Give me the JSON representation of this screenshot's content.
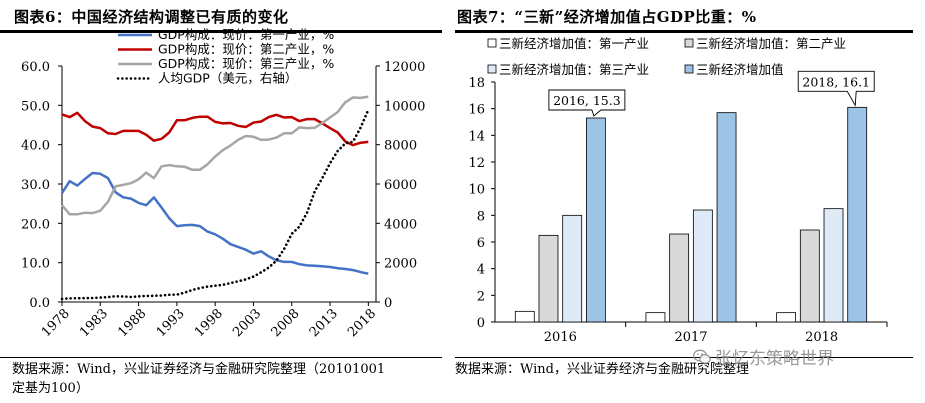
{
  "left": {
    "title": "图表6：中国经济结构调整已有质的变化",
    "source_line1": "数据来源：Wind，兴业证券经济与金融研究院整理（20101001",
    "source_line2": "定基为100）"
  },
  "right": {
    "title": "图表7：“三新”经济增加值占GDP比重：%",
    "source_line1": "数据来源：Wind，兴业证券经济与金融研究院整理"
  },
  "watermark": {
    "text": "张忆东策略世界",
    "icon": "wechat-icon"
  },
  "chart_data": [
    {
      "type": "line",
      "title": "中国经济结构调整已有质的变化",
      "x_ticks": [
        1978,
        1983,
        1988,
        1993,
        1998,
        2003,
        2008,
        2013,
        2018
      ],
      "xlim": [
        1978,
        2019
      ],
      "ylim_left": [
        0,
        60
      ],
      "y_ticks_left": [
        "0.0",
        "10.0",
        "20.0",
        "30.0",
        "40.0",
        "50.0",
        "60.0"
      ],
      "ylim_right": [
        0,
        12000
      ],
      "y_ticks_right": [
        "0",
        "2000",
        "4000",
        "6000",
        "8000",
        "10000",
        "12000"
      ],
      "grid": false,
      "legend_position": "top-right",
      "series": [
        {
          "name": "GDP构成：现价：第一产业，%",
          "axis": "left",
          "color": "#4472C4",
          "x": [
            1978,
            1979,
            1980,
            1981,
            1982,
            1983,
            1984,
            1985,
            1986,
            1987,
            1988,
            1989,
            1990,
            1991,
            1992,
            1993,
            1994,
            1995,
            1996,
            1997,
            1998,
            1999,
            2000,
            2001,
            2002,
            2003,
            2004,
            2005,
            2006,
            2007,
            2008,
            2009,
            2010,
            2011,
            2012,
            2013,
            2014,
            2015,
            2016,
            2017,
            2018
          ],
          "values": [
            27.7,
            30.7,
            29.6,
            31.3,
            32.8,
            32.6,
            31.5,
            27.9,
            26.6,
            26.3,
            25.2,
            24.6,
            26.6,
            24.0,
            21.3,
            19.3,
            19.5,
            19.6,
            19.3,
            17.9,
            17.2,
            16.1,
            14.7,
            14.0,
            13.3,
            12.3,
            12.9,
            11.6,
            10.6,
            10.2,
            10.2,
            9.6,
            9.3,
            9.2,
            9.1,
            8.9,
            8.6,
            8.4,
            8.1,
            7.6,
            7.2
          ]
        },
        {
          "name": "GDP构成：现价：第二产业，%",
          "axis": "left",
          "color": "#C00000",
          "x": [
            1978,
            1979,
            1980,
            1981,
            1982,
            1983,
            1984,
            1985,
            1986,
            1987,
            1988,
            1989,
            1990,
            1991,
            1992,
            1993,
            1994,
            1995,
            1996,
            1997,
            1998,
            1999,
            2000,
            2001,
            2002,
            2003,
            2004,
            2005,
            2006,
            2007,
            2008,
            2009,
            2010,
            2011,
            2012,
            2013,
            2014,
            2015,
            2016,
            2017,
            2018
          ],
          "values": [
            47.7,
            47.0,
            48.1,
            46.0,
            44.6,
            44.2,
            42.9,
            42.7,
            43.5,
            43.5,
            43.5,
            42.5,
            41.0,
            41.5,
            43.1,
            46.2,
            46.2,
            46.8,
            47.1,
            47.1,
            45.8,
            45.4,
            45.5,
            44.8,
            44.5,
            45.6,
            45.9,
            47.0,
            47.6,
            46.9,
            47.0,
            46.0,
            46.5,
            46.5,
            45.4,
            44.2,
            43.1,
            40.8,
            39.9,
            40.5,
            40.7
          ]
        },
        {
          "name": "GDP构成：现价：第三产业，%",
          "axis": "left",
          "color": "#A6A6A6",
          "x": [
            1978,
            1979,
            1980,
            1981,
            1982,
            1983,
            1984,
            1985,
            1986,
            1987,
            1988,
            1989,
            1990,
            1991,
            1992,
            1993,
            1994,
            1995,
            1996,
            1997,
            1998,
            1999,
            2000,
            2001,
            2002,
            2003,
            2004,
            2005,
            2006,
            2007,
            2008,
            2009,
            2010,
            2011,
            2012,
            2013,
            2014,
            2015,
            2016,
            2017,
            2018
          ],
          "values": [
            24.6,
            22.3,
            22.3,
            22.7,
            22.6,
            23.2,
            25.5,
            29.4,
            29.8,
            30.2,
            31.2,
            32.9,
            31.5,
            34.5,
            34.8,
            34.5,
            34.4,
            33.6,
            33.6,
            35.0,
            37.0,
            38.6,
            39.8,
            41.2,
            42.2,
            42.0,
            41.2,
            41.3,
            41.8,
            42.9,
            42.9,
            44.4,
            44.2,
            44.3,
            45.5,
            46.9,
            48.3,
            50.8,
            52.0,
            51.9,
            52.2
          ]
        },
        {
          "name": "人均GDP（美元，右轴）",
          "axis": "right",
          "color": "#000000",
          "style": "dotted",
          "x": [
            1978,
            1979,
            1980,
            1981,
            1982,
            1983,
            1984,
            1985,
            1986,
            1987,
            1988,
            1989,
            1990,
            1991,
            1992,
            1993,
            1994,
            1995,
            1996,
            1997,
            1998,
            1999,
            2000,
            2001,
            2002,
            2003,
            2004,
            2005,
            2006,
            2007,
            2008,
            2009,
            2010,
            2011,
            2012,
            2013,
            2014,
            2015,
            2016,
            2017,
            2018
          ],
          "values": [
            156,
            183,
            195,
            197,
            203,
            225,
            250,
            294,
            281,
            252,
            284,
            311,
            317,
            333,
            366,
            377,
            473,
            610,
            709,
            781,
            828,
            873,
            959,
            1053,
            1149,
            1289,
            1509,
            1753,
            2099,
            2694,
            3468,
            3832,
            4550,
            5618,
            6317,
            7051,
            7679,
            8067,
            8148,
            8879,
            9771
          ]
        }
      ]
    },
    {
      "type": "bar",
      "title": "“三新”经济增加值占GDP比重：%",
      "categories": [
        "2016",
        "2017",
        "2018"
      ],
      "ylim": [
        0,
        18
      ],
      "y_ticks": [
        "0",
        "2",
        "4",
        "6",
        "8",
        "10",
        "12",
        "14",
        "16",
        "18"
      ],
      "grid": false,
      "legend_position": "top",
      "series": [
        {
          "name": "三新经济增加值：第一产业",
          "color": "#FFFFFF",
          "values": [
            0.8,
            0.7,
            0.7
          ]
        },
        {
          "name": "三新经济增加值：第二产业",
          "color": "#D9D9D9",
          "values": [
            6.5,
            6.6,
            6.9
          ]
        },
        {
          "name": "三新经济增加值：第三产业",
          "color": "#DEEBF7",
          "values": [
            8.0,
            8.4,
            8.5
          ]
        },
        {
          "name": "三新经济增加值",
          "color": "#9DC3E6",
          "values": [
            15.3,
            15.7,
            16.1
          ]
        }
      ],
      "annotations": [
        {
          "text": "2016, 15.3",
          "category": "2016",
          "value": 15.3
        },
        {
          "text": "2018, 16.1",
          "category": "2018",
          "value": 16.1
        }
      ]
    }
  ]
}
